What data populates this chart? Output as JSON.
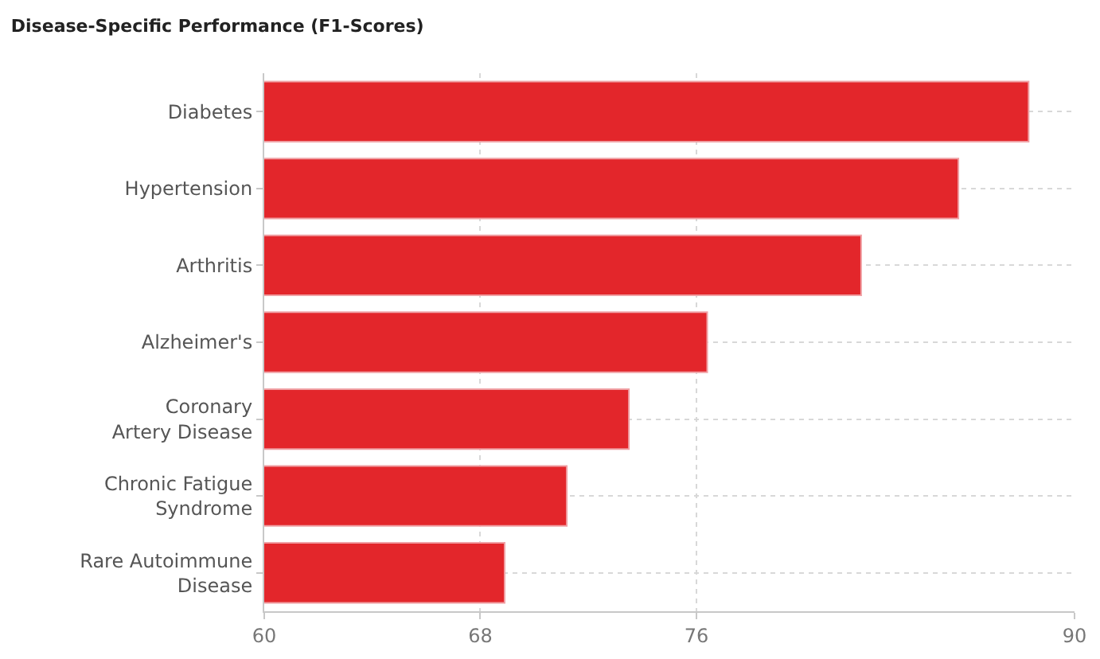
{
  "chart_data": {
    "type": "bar",
    "orientation": "horizontal",
    "title": "Disease-Specific Performance (F1-Scores)",
    "categories": [
      "Diabetes",
      "Hypertension",
      "Arthritis",
      "Alzheimer's",
      "Coronary Artery Disease",
      "Chronic Fatigue Syndrome",
      "Rare Autoimmune Disease"
    ],
    "values": [
      88.3,
      85.7,
      82.1,
      76.4,
      73.5,
      71.2,
      68.9
    ],
    "color": "#e3262b",
    "xlim": [
      60,
      90
    ],
    "xticks": [
      60,
      68,
      76,
      90
    ],
    "grid": true
  }
}
